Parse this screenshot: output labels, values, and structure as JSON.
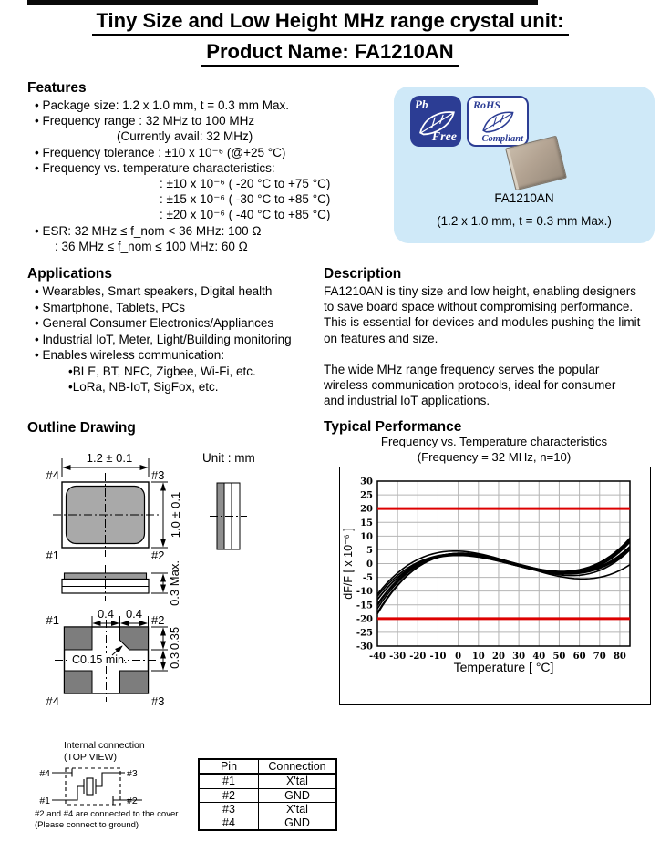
{
  "page": {
    "title_line1": "Tiny Size and Low Height MHz range crystal unit:",
    "title_line2": "Product Name: FA1210AN"
  },
  "colors": {
    "highlight_box_bg": "#cfe9f8",
    "logo_blue": "#2c3d94",
    "limit_line_red": "#dd0000",
    "package_gray": "#a9a9a9",
    "pad_gray": "#7d7d7d"
  },
  "features": {
    "heading": "Features",
    "items": [
      "• Package size: 1.2 x 1.0 mm, t = 0.3 mm Max.",
      "• Frequency range : 32 MHz to 100 MHz",
      "(Currently avail: 32  MHz)",
      "• Frequency tolerance : ±10 x 10⁻⁶ (@+25 °C)",
      "• Frequency vs. temperature characteristics:",
      ": ±10 x 10⁻⁶ ( -20 °C to +75 °C)",
      ": ±15 x 10⁻⁶ ( -30 °C to +85 °C)",
      ": ±20 x 10⁻⁶ ( -40 °C to +85 °C)",
      "• ESR: 32 MHz ≤ f_nom < 36 MHz: 100 Ω",
      ": 36 MHz ≤ f_nom ≤ 100 MHz: 60 Ω"
    ]
  },
  "badge": {
    "pb_line1": "Pb",
    "pb_line2": "Free",
    "rohs_line1": "RoHS",
    "rohs_line2": "Compliant",
    "product_name": "FA1210AN",
    "size_caption": "(1.2 x 1.0 mm, t = 0.3 mm Max.)"
  },
  "applications": {
    "heading": "Applications",
    "items": [
      "• Wearables, Smart speakers, Digital health",
      "• Smartphone, Tablets, PCs",
      "• General Consumer Electronics/Appliances",
      "• Industrial IoT, Meter, Light/Building monitoring",
      "• Enables wireless communication:",
      "•BLE, BT, NFC, Zigbee, Wi-Fi, etc.",
      "•LoRa, NB-IoT, SigFox, etc."
    ]
  },
  "description": {
    "heading": "Description",
    "para1_lines": [
      "FA1210AN is tiny size and low height, enabling designers",
      "to save board space without compromising performance.",
      "This is essential for devices and modules pushing the limit",
      "on features and size."
    ],
    "para2_lines": [
      "The wide MHz range frequency serves the popular",
      "wireless communication protocols, ideal for consumer",
      "and industrial IoT applications."
    ]
  },
  "outline": {
    "heading": "Outline Drawing",
    "unit_label": "Unit : mm",
    "top_view": {
      "dim_width": "1.2 ± 0.1",
      "dim_height": "1.0 ± 0.1",
      "pin_tl": "#4",
      "pin_tr": "#3",
      "pin_bl": "#1",
      "pin_br": "#2"
    },
    "side_view": {
      "dim_thickness": "0.3 Max."
    },
    "land_pattern": {
      "dim_left": "0.4",
      "dim_right": "0.4",
      "dim_pad_height": "0.35",
      "dim_gap": "0.3",
      "chamfer_note": "C0.15 min.",
      "pin_tl": "#1",
      "pin_tr": "#2",
      "pin_bl": "#4",
      "pin_br": "#3"
    }
  },
  "internal": {
    "title_line1": "Internal connection",
    "title_line2": "(TOP VIEW)",
    "pin_tl": "#4",
    "pin_tr": "#3",
    "pin_bl": "#1",
    "pin_br": "#2",
    "note_line1": "#2 and #4 are connected to the cover.",
    "note_line2": "(Please connect to ground)"
  },
  "pin_table": {
    "headers": [
      "Pin",
      "Connection"
    ],
    "rows": [
      [
        "#1",
        "X'tal"
      ],
      [
        "#2",
        "GND"
      ],
      [
        "#3",
        "X'tal"
      ],
      [
        "#4",
        "GND"
      ]
    ]
  },
  "performance": {
    "heading": "Typical Performance"
  },
  "chart_data": {
    "type": "line",
    "title": "Frequency vs. Temperature characteristics",
    "subtitle": "(Frequency = 32 MHz, n=10)",
    "xlabel": "Temperature [ °C]",
    "ylabel": "dF/F [ x 10⁻⁶ ]",
    "xlim": [
      -40,
      85
    ],
    "ylim": [
      -30,
      30
    ],
    "x_ticks": [
      -40,
      -30,
      -20,
      -10,
      0,
      10,
      20,
      30,
      40,
      50,
      60,
      70,
      80
    ],
    "y_ticks": [
      30,
      25,
      20,
      15,
      10,
      5,
      0,
      -5,
      -10,
      -15,
      -20,
      -25,
      -30
    ],
    "grid": true,
    "legend_position": "none",
    "limit_lines": {
      "values": [
        20,
        -20
      ],
      "color": "#dd0000"
    },
    "n_samples": 10,
    "series_model": "dF/F = A*1e-4*(T-Ti)^3 + B*(T-Ti) + C (AT-cut cubic, T in °C)",
    "series": [
      {
        "A": 1.05,
        "B": -0.205,
        "Ti": 27,
        "C": 0
      },
      {
        "A": 1.0,
        "B": -0.2,
        "Ti": 27,
        "C": 0.3
      },
      {
        "A": 0.95,
        "B": -0.195,
        "Ti": 26,
        "C": -0.2
      },
      {
        "A": 0.9,
        "B": -0.195,
        "Ti": 28,
        "C": 0.2
      },
      {
        "A": 0.85,
        "B": -0.19,
        "Ti": 26,
        "C": 0
      },
      {
        "A": 1.02,
        "B": -0.225,
        "Ti": 29,
        "C": -0.3
      },
      {
        "A": 0.92,
        "B": -0.185,
        "Ti": 25,
        "C": 0.1
      },
      {
        "A": 0.8,
        "B": -0.24,
        "Ti": 30,
        "C": -0.5
      },
      {
        "A": 0.98,
        "B": -0.19,
        "Ti": 26,
        "C": 0.4
      },
      {
        "A": 0.83,
        "B": -0.185,
        "Ti": 27,
        "C": -0.4
      }
    ]
  }
}
